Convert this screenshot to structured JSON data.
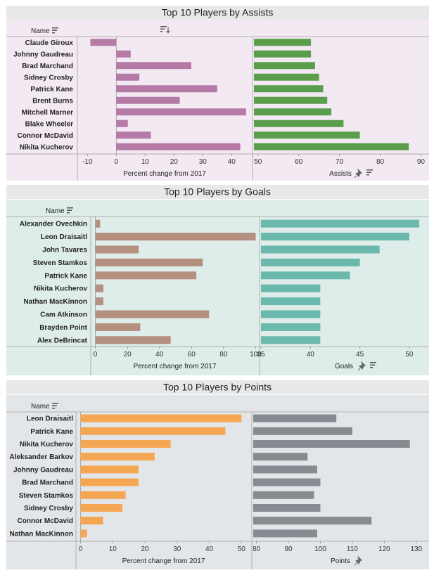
{
  "chart_data": [
    {
      "type": "bar",
      "title": "Top 10 Players by Assists",
      "name_header": "Name",
      "categories": [
        "Claude Giroux",
        "Johnny Gaudreau",
        "Brad Marchand",
        "Sidney Crosby",
        "Patrick Kane",
        "Brent Burns",
        "Mitchell Marner",
        "Blake Wheeler",
        "Connor McDavid",
        "Nikita Kucherov"
      ],
      "series": [
        {
          "name": "Percent change from 2017",
          "values": [
            -9,
            5,
            26,
            8,
            35,
            22,
            45,
            4,
            12,
            43
          ]
        },
        {
          "name": "Assists",
          "values": [
            63,
            63,
            64,
            65,
            66,
            67,
            68,
            71,
            75,
            87
          ]
        }
      ],
      "left_axis": {
        "label": "Percent change from 2017",
        "range": [
          -13,
          47
        ],
        "ticks": [
          -10,
          0,
          10,
          20,
          30,
          40
        ]
      },
      "right_axis": {
        "label": "Assists",
        "range": [
          49,
          92
        ],
        "ticks": [
          50,
          60,
          70,
          80,
          90
        ]
      },
      "colors": {
        "background": "#f3e9f3",
        "left_bar": "#b67aa6",
        "right_bar": "#5a9e4b"
      }
    },
    {
      "type": "bar",
      "title": "Top 10 Players by Goals",
      "name_header": "Name",
      "categories": [
        "Alexander Ovechkin",
        "Leon Draisaitl",
        "John Tavares",
        "Steven Stamkos",
        "Patrick Kane",
        "Nikita Kucherov",
        "Nathan MacKinnon",
        "Cam Atkinson",
        "Brayden Point",
        "Alex DeBrincat"
      ],
      "series": [
        {
          "name": "Percent change from 2017",
          "values": [
            3,
            100,
            27,
            67,
            63,
            5,
            5,
            71,
            28,
            47
          ]
        },
        {
          "name": "Goals",
          "values": [
            51,
            50,
            47,
            45,
            44,
            41,
            41,
            41,
            41,
            41
          ]
        }
      ],
      "left_axis": {
        "label": "Percent change from 2017",
        "range": [
          -2,
          102
        ],
        "ticks": [
          0,
          20,
          40,
          60,
          80,
          100
        ]
      },
      "right_axis": {
        "label": "Goals",
        "range": [
          35,
          52
        ],
        "ticks": [
          35,
          40,
          45,
          50
        ]
      },
      "colors": {
        "background": "#deede9",
        "left_bar": "#b58f7f",
        "right_bar": "#6bb8ad"
      }
    },
    {
      "type": "bar",
      "title": "Top 10 Players by Points",
      "name_header": "Name",
      "categories": [
        "Leon Draisaitl",
        "Patrick Kane",
        "Nikita Kucherov",
        "Aleksander Barkov",
        "Johnny Gaudreau",
        "Brad Marchand",
        "Steven Stamkos",
        "Sidney Crosby",
        "Connor McDavid",
        "Nathan MacKinnon"
      ],
      "series": [
        {
          "name": "Percent change from 2017",
          "values": [
            50,
            45,
            28,
            23,
            18,
            18,
            14,
            13,
            7,
            2
          ]
        },
        {
          "name": "Points",
          "values": [
            105,
            110,
            128,
            96,
            99,
            100,
            98,
            100,
            116,
            99
          ]
        }
      ],
      "left_axis": {
        "label": "Percent change from 2017",
        "range": [
          -1,
          53
        ],
        "ticks": [
          0,
          10,
          20,
          30,
          40,
          50
        ]
      },
      "right_axis": {
        "label": "Points",
        "range": [
          79,
          134
        ],
        "ticks": [
          80,
          90,
          100,
          110,
          120,
          130
        ]
      },
      "colors": {
        "background": "#e3e6e9",
        "left_bar": "#f5a653",
        "right_bar": "#858b90"
      }
    }
  ]
}
